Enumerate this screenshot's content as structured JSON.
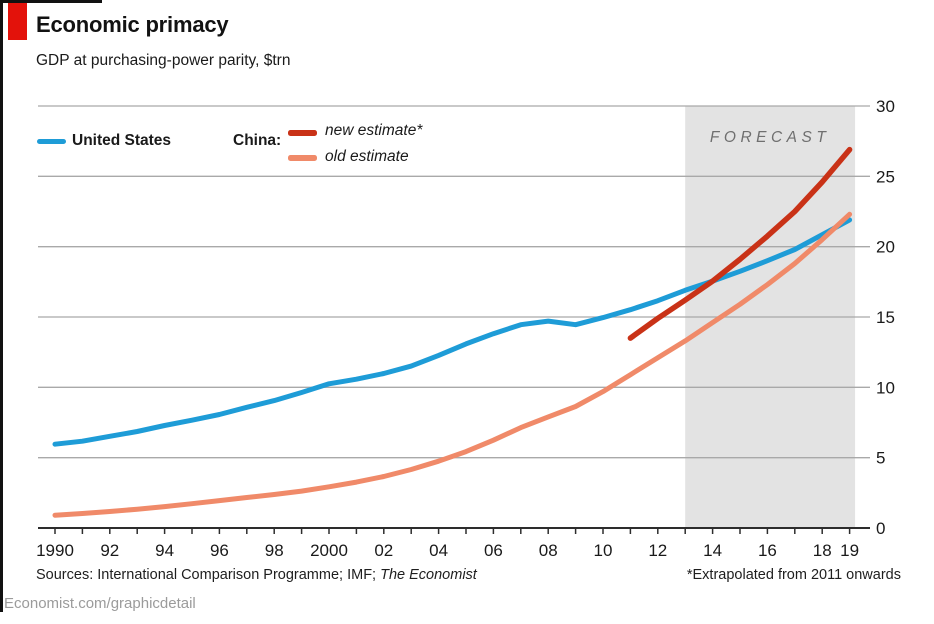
{
  "header": {
    "title": "Economic primacy",
    "subtitle": "GDP at purchasing-power parity, $trn"
  },
  "legend": {
    "us_label": "United States",
    "china_label": "China:",
    "new_label": "new estimate*",
    "old_label": "old estimate"
  },
  "footer": {
    "sources_prefix": "Sources: International Comparison Programme; IMF; ",
    "sources_italic": "The Economist",
    "note": "*Extrapolated from 2011 onwards",
    "credit": "Economist.com/graphicdetail"
  },
  "colors": {
    "brand_red": "#e3120b",
    "us_blue": "#1e9cd7",
    "china_new_red": "#c93217",
    "china_old_salmon": "#f08a69",
    "gridline": "#a9a9a9",
    "axis": "#2d2d2d",
    "forecast_band": "#e3e3e3",
    "forecast_text": "#6f6f6f",
    "tick_label": "#1a1a1a"
  },
  "chart_data": {
    "type": "line",
    "title": "Economic primacy",
    "subtitle": "GDP at purchasing-power parity, $trn",
    "xlabel": "",
    "ylabel": "GDP at PPP, $trn",
    "xlim": [
      1990,
      2019.2
    ],
    "ylim": [
      0,
      30
    ],
    "yticks": [
      0,
      5,
      10,
      15,
      20,
      25,
      30
    ],
    "y_axis_side": "right",
    "grid": true,
    "x_tick_years": [
      1990,
      1992,
      1994,
      1996,
      1998,
      2000,
      2002,
      2004,
      2006,
      2008,
      2010,
      2012,
      2014,
      2016,
      2018,
      2019
    ],
    "x_tick_labels": [
      "1990",
      "92",
      "94",
      "96",
      "98",
      "2000",
      "02",
      "04",
      "06",
      "08",
      "10",
      "12",
      "14",
      "16",
      "18",
      "19"
    ],
    "x_minor_tick_every_year": true,
    "forecast_band": {
      "start_year": 2013,
      "end_year": 2019.2,
      "label": "FORECAST"
    },
    "series": [
      {
        "name": "United States",
        "color": "#1e9cd7",
        "start_year": 1990,
        "values": [
          5.96,
          6.17,
          6.52,
          6.86,
          7.29,
          7.66,
          8.07,
          8.58,
          9.06,
          9.63,
          10.25,
          10.58,
          10.98,
          11.51,
          12.27,
          13.09,
          13.81,
          14.45,
          14.71,
          14.45,
          14.96,
          15.52,
          16.16,
          16.9,
          17.55,
          18.25,
          19.0,
          19.8,
          20.85,
          21.9
        ]
      },
      {
        "name": "China: old estimate",
        "color": "#f08a69",
        "start_year": 1990,
        "values": [
          0.91,
          1.03,
          1.17,
          1.34,
          1.52,
          1.73,
          1.95,
          2.17,
          2.38,
          2.62,
          2.93,
          3.26,
          3.66,
          4.16,
          4.75,
          5.43,
          6.24,
          7.14,
          7.9,
          8.64,
          9.7,
          10.9,
          12.1,
          13.3,
          14.6,
          15.9,
          17.3,
          18.8,
          20.5,
          22.3
        ]
      },
      {
        "name": "China: new estimate*",
        "color": "#c93217",
        "start_year": 2011,
        "values": [
          13.5,
          14.9,
          16.2,
          17.55,
          19.1,
          20.75,
          22.5,
          24.6,
          26.9
        ]
      }
    ],
    "annotations": [
      "FORECAST",
      "*Extrapolated from 2011 onwards"
    ]
  }
}
